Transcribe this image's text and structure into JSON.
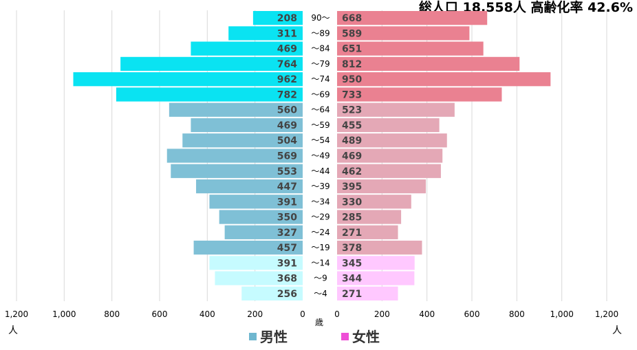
{
  "chart_data": {
    "type": "bar",
    "title": "総人口 18,558人 高齢化率 42.6%",
    "orientation": "horizontal-population-pyramid",
    "categories": [
      "90〜",
      "〜89",
      "〜84",
      "〜79",
      "〜74",
      "〜69",
      "〜64",
      "〜59",
      "〜54",
      "〜49",
      "〜44",
      "〜39",
      "〜34",
      "〜29",
      "〜24",
      "〜19",
      "〜14",
      "〜9",
      "〜4"
    ],
    "series": [
      {
        "name": "男性",
        "values": [
          208,
          311,
          469,
          764,
          962,
          782,
          560,
          469,
          504,
          569,
          553,
          447,
          391,
          350,
          327,
          457,
          391,
          368,
          256
        ]
      },
      {
        "name": "女性",
        "values": [
          668,
          589,
          651,
          812,
          950,
          733,
          523,
          455,
          489,
          469,
          462,
          395,
          330,
          285,
          271,
          378,
          345,
          344,
          271
        ]
      }
    ],
    "axis": {
      "ticks_left": [
        "1,200",
        "1,000",
        "800",
        "600",
        "400",
        "200",
        "0"
      ],
      "ticks_right": [
        "0",
        "200",
        "400",
        "600",
        "800",
        "1,000",
        "1,200"
      ],
      "range": [
        0,
        1200
      ],
      "unit_label": "人",
      "age_unit_label": "歳",
      "grid": true
    },
    "legend": {
      "position": "bottom",
      "items": [
        {
          "label": "男性",
          "color": "#6fb7cf"
        },
        {
          "label": "女性",
          "color": "#ee4fd6"
        }
      ]
    },
    "colors": {
      "male_old": "#0ae3f2",
      "male_mid": "#7fc0d6",
      "male_young": "#c6fbff",
      "female_old": "#ea8191",
      "female_mid": "#e4a8b6",
      "female_young": "#ffc8ff"
    }
  }
}
